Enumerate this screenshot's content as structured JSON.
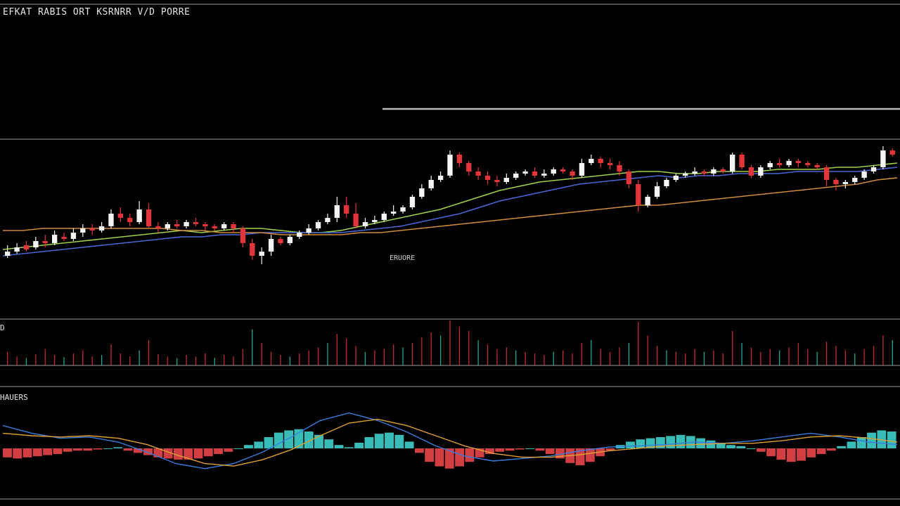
{
  "chart_title": "EFKAT RABIS ORT KSRNRR V/D PORRE",
  "annotation": "ERUORE",
  "volume_label": "D",
  "macd_label": "HAUERS",
  "colors": {
    "background": "#000000",
    "bull": "#f4f4f4",
    "bear": "#e2353a",
    "accent": "#23c4b4",
    "ma_fast": "#9fd24a",
    "ma_mid": "#4a66d8",
    "ma_slow": "#d08a3a",
    "grid": "#6a6a6a",
    "hist_pos": "#3fd0cc",
    "hist_neg": "#e8464a",
    "macd_line": "#3a7ee0",
    "signal_line": "#e0a030"
  },
  "chart_data": {
    "type": "candlestick",
    "title": "EFKAT RABIS ORT KSRNRR V/D PORRE",
    "xlabel": "",
    "ylabel": "",
    "grid": true,
    "ylim": [
      0,
      100
    ],
    "resistance_level": 70,
    "upper_reference": 100,
    "candles": [
      [
        22,
        24,
        27,
        21
      ],
      [
        24,
        26,
        28,
        23
      ],
      [
        27,
        25,
        29,
        24
      ],
      [
        26,
        29,
        31,
        25
      ],
      [
        29,
        28,
        32,
        26
      ],
      [
        28,
        32,
        34,
        27
      ],
      [
        31,
        30,
        33,
        29
      ],
      [
        30,
        33,
        35,
        29
      ],
      [
        33,
        35,
        37,
        31
      ],
      [
        35,
        34,
        37,
        32
      ],
      [
        34,
        36,
        38,
        33
      ],
      [
        36,
        42,
        44,
        35
      ],
      [
        42,
        40,
        45,
        38
      ],
      [
        40,
        38,
        42,
        36
      ],
      [
        38,
        44,
        48,
        37
      ],
      [
        44,
        36,
        47,
        35
      ],
      [
        36,
        35,
        38,
        33
      ],
      [
        35,
        37,
        38,
        34
      ],
      [
        37,
        36,
        39,
        35
      ],
      [
        36,
        38,
        39,
        35
      ],
      [
        38,
        37,
        40,
        36
      ],
      [
        37,
        36,
        38,
        34
      ],
      [
        36,
        35,
        37,
        34
      ],
      [
        35,
        37,
        38,
        34
      ],
      [
        37,
        35,
        38,
        33
      ],
      [
        35,
        28,
        36,
        26
      ],
      [
        28,
        22,
        30,
        20
      ],
      [
        22,
        24,
        26,
        18
      ],
      [
        24,
        30,
        32,
        22
      ],
      [
        30,
        28,
        31,
        27
      ],
      [
        28,
        31,
        32,
        27
      ],
      [
        31,
        33,
        34,
        30
      ],
      [
        33,
        35,
        37,
        32
      ],
      [
        35,
        38,
        39,
        34
      ],
      [
        38,
        40,
        42,
        37
      ],
      [
        40,
        46,
        50,
        38
      ],
      [
        46,
        42,
        50,
        40
      ],
      [
        42,
        36,
        47,
        35
      ],
      [
        36,
        38,
        40,
        35
      ],
      [
        38,
        39,
        41,
        37
      ],
      [
        39,
        42,
        43,
        38
      ],
      [
        42,
        43,
        46,
        41
      ],
      [
        43,
        45,
        46,
        42
      ],
      [
        45,
        50,
        51,
        44
      ],
      [
        50,
        54,
        56,
        49
      ],
      [
        54,
        58,
        60,
        53
      ],
      [
        58,
        60,
        62,
        57
      ],
      [
        60,
        70,
        72,
        59
      ],
      [
        70,
        66,
        71,
        64
      ],
      [
        66,
        62,
        67,
        60
      ],
      [
        62,
        60,
        64,
        58
      ],
      [
        60,
        58,
        62,
        56
      ],
      [
        58,
        57,
        60,
        55
      ],
      [
        57,
        59,
        61,
        56
      ],
      [
        59,
        61,
        62,
        58
      ],
      [
        61,
        62,
        63,
        60
      ],
      [
        62,
        60,
        64,
        59
      ],
      [
        60,
        61,
        63,
        59
      ],
      [
        61,
        63,
        64,
        60
      ],
      [
        63,
        62,
        64,
        61
      ],
      [
        62,
        60,
        63,
        58
      ],
      [
        60,
        66,
        68,
        59
      ],
      [
        66,
        68,
        70,
        65
      ],
      [
        68,
        66,
        69,
        64
      ],
      [
        66,
        65,
        68,
        63
      ],
      [
        65,
        62,
        67,
        60
      ],
      [
        62,
        56,
        63,
        54
      ],
      [
        56,
        46,
        58,
        43
      ],
      [
        46,
        50,
        51,
        45
      ],
      [
        50,
        55,
        57,
        49
      ],
      [
        55,
        58,
        59,
        54
      ],
      [
        58,
        60,
        61,
        57
      ],
      [
        60,
        61,
        62,
        59
      ],
      [
        61,
        62,
        64,
        60
      ],
      [
        62,
        61,
        63,
        60
      ],
      [
        61,
        63,
        64,
        60
      ],
      [
        63,
        62,
        64,
        61
      ],
      [
        62,
        70,
        71,
        61
      ],
      [
        70,
        64,
        71,
        63
      ],
      [
        64,
        60,
        65,
        59
      ],
      [
        60,
        64,
        65,
        59
      ],
      [
        64,
        66,
        67,
        63
      ],
      [
        66,
        65,
        68,
        64
      ],
      [
        65,
        67,
        68,
        64
      ],
      [
        67,
        66,
        68,
        64
      ],
      [
        66,
        65,
        67,
        64
      ],
      [
        65,
        64,
        66,
        63
      ],
      [
        64,
        58,
        65,
        55
      ],
      [
        58,
        56,
        59,
        53
      ],
      [
        56,
        57,
        58,
        54
      ],
      [
        57,
        59,
        60,
        56
      ],
      [
        59,
        62,
        63,
        58
      ],
      [
        62,
        64,
        65,
        61
      ],
      [
        64,
        72,
        74,
        63
      ],
      [
        72,
        70,
        73,
        69
      ]
    ],
    "moving_averages": [
      {
        "values": [
          25,
          26,
          27,
          28,
          29,
          30,
          31,
          32,
          33,
          34,
          33,
          34,
          35,
          35,
          34,
          33,
          33,
          34,
          36,
          38,
          40,
          42,
          44,
          47,
          50,
          53,
          55,
          57,
          58,
          59,
          60,
          61,
          62,
          62,
          61,
          61,
          62,
          62,
          62,
          63,
          63,
          63,
          64,
          64,
          65,
          66
        ]
      },
      {
        "values": [
          22,
          23,
          24,
          25,
          26,
          27,
          28,
          29,
          30,
          31,
          31,
          32,
          32,
          33,
          33,
          33,
          33,
          33,
          34,
          35,
          36,
          38,
          40,
          42,
          45,
          48,
          50,
          52,
          54,
          56,
          57,
          58,
          59,
          60,
          59,
          60,
          60,
          61,
          61,
          61,
          62,
          62,
          62,
          62,
          63,
          64
        ]
      },
      {
        "values": [
          34,
          34,
          35,
          35,
          35,
          35,
          35,
          35,
          35,
          34,
          34,
          33,
          33,
          33,
          32,
          32,
          32,
          32,
          33,
          33,
          34,
          35,
          36,
          37,
          38,
          39,
          40,
          41,
          42,
          43,
          44,
          45,
          46,
          46,
          47,
          48,
          49,
          50,
          51,
          52,
          53,
          54,
          55,
          56,
          58,
          59
        ]
      }
    ],
    "volume": [
      18,
      12,
      10,
      15,
      22,
      14,
      11,
      16,
      20,
      12,
      14,
      28,
      16,
      12,
      20,
      34,
      15,
      12,
      10,
      14,
      12,
      16,
      10,
      14,
      12,
      22,
      48,
      30,
      18,
      14,
      12,
      16,
      20,
      24,
      30,
      42,
      36,
      26,
      18,
      20,
      22,
      28,
      24,
      30,
      38,
      44,
      40,
      60,
      52,
      46,
      34,
      28,
      22,
      24,
      20,
      18,
      16,
      14,
      18,
      20,
      16,
      30,
      34,
      22,
      18,
      24,
      30,
      58,
      40,
      26,
      20,
      18,
      16,
      22,
      18,
      20,
      16,
      46,
      30,
      24,
      18,
      22,
      20,
      24,
      30,
      22,
      18,
      32,
      26,
      20,
      16,
      22,
      26,
      40,
      34
    ],
    "macd": {
      "histogram": [
        -0.8,
        -0.9,
        -0.8,
        -0.7,
        -0.6,
        -0.5,
        -0.3,
        -0.2,
        -0.2,
        -0.1,
        0.0,
        0.1,
        -0.2,
        -0.4,
        -0.6,
        -0.8,
        -0.9,
        -1.0,
        -1.0,
        -0.9,
        -0.7,
        -0.5,
        -0.3,
        0.0,
        0.3,
        0.6,
        1.0,
        1.4,
        1.6,
        1.7,
        1.5,
        1.2,
        0.8,
        0.3,
        0.1,
        0.5,
        1.0,
        1.3,
        1.4,
        1.2,
        0.6,
        -0.4,
        -1.2,
        -1.6,
        -1.8,
        -1.6,
        -1.2,
        -0.8,
        -0.5,
        -0.3,
        -0.2,
        -0.1,
        0.0,
        -0.2,
        -0.5,
        -0.9,
        -1.3,
        -1.5,
        -1.2,
        -0.7,
        -0.2,
        0.3,
        0.6,
        0.8,
        0.9,
        1.0,
        1.1,
        1.2,
        1.1,
        0.9,
        0.7,
        0.5,
        0.3,
        0.2,
        0.0,
        -0.3,
        -0.7,
        -1.0,
        -1.2,
        -1.1,
        -0.8,
        -0.5,
        -0.2,
        0.2,
        0.6,
        1.0,
        1.4,
        1.6,
        1.5
      ],
      "macd_line": [
        1.8,
        1.2,
        0.8,
        0.9,
        0.5,
        -0.3,
        -1.2,
        -1.6,
        -1.2,
        -0.3,
        0.9,
        2.2,
        2.8,
        2.2,
        1.3,
        0.2,
        -0.6,
        -1.0,
        -0.8,
        -0.6,
        -0.2,
        0.1,
        0.2,
        0.3,
        0.5,
        0.4,
        0.6,
        0.9,
        1.2,
        0.9,
        0.5,
        0.3
      ],
      "signal_line": [
        1.2,
        1.0,
        0.9,
        1.0,
        0.8,
        0.3,
        -0.5,
        -1.2,
        -1.4,
        -0.9,
        -0.1,
        1.0,
        2.0,
        2.3,
        1.8,
        1.0,
        0.2,
        -0.4,
        -0.7,
        -0.7,
        -0.5,
        -0.2,
        0.0,
        0.2,
        0.3,
        0.4,
        0.4,
        0.6,
        0.9,
        1.0,
        0.8,
        0.5
      ]
    }
  }
}
